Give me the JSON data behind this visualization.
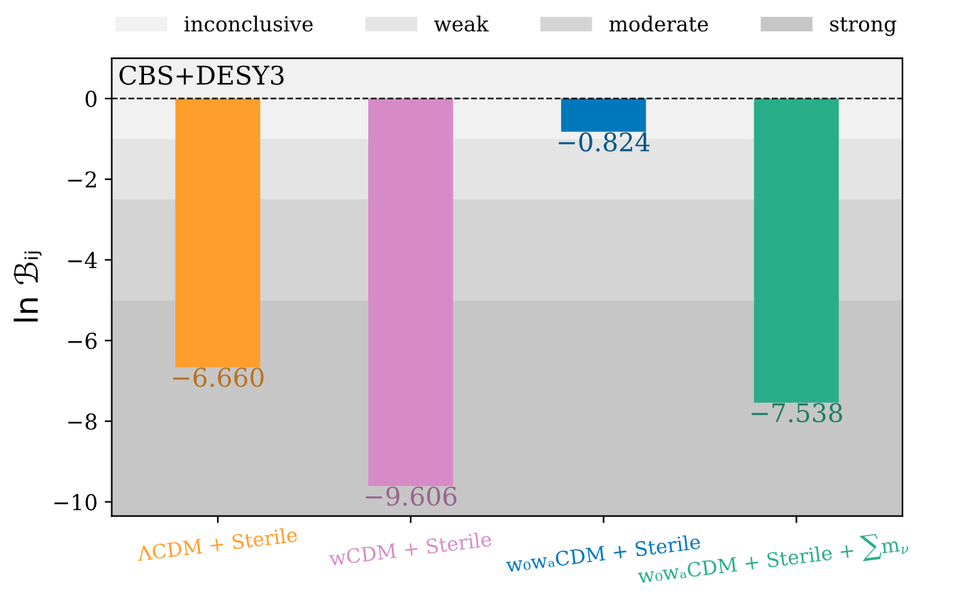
{
  "chart_data": {
    "type": "bar",
    "ylabel": "ln ℬᵢⱼ",
    "categories": [
      "ΛCDM + Sterile",
      "wCDM + Sterile",
      "w₀wₐCDM + Sterile",
      "w₀wₐCDM + Sterile + ∑m$_{ν}$"
    ],
    "values": [
      -6.66,
      -9.606,
      -0.824,
      -7.538
    ],
    "colors": [
      "#ff9e2a",
      "#d68bc6",
      "#0077bb",
      "#29ad88"
    ],
    "value_labels": [
      "−6.660",
      "−9.606",
      "−0.824",
      "−7.538"
    ],
    "ylim": [
      -10.35,
      1.0
    ],
    "yticks": [
      {
        "value": -10,
        "label": "−10"
      },
      {
        "value": -8,
        "label": "−8"
      },
      {
        "value": -6,
        "label": "−6"
      },
      {
        "value": -4,
        "label": "−4"
      },
      {
        "value": -2,
        "label": "−2"
      },
      0
    ],
    "bands": [
      {
        "axis": "y",
        "from": -1,
        "to": 1.0,
        "label": "inconclusive",
        "color": "#f1f1f1"
      },
      {
        "axis": "y",
        "from": -2.5,
        "to": -1,
        "label": "weak",
        "color": "#e4e4e4"
      },
      {
        "axis": "y",
        "from": -5,
        "to": -2.5,
        "label": "moderate",
        "color": "#d4d4d4"
      },
      {
        "axis": "y",
        "from": -10.35,
        "to": -5,
        "label": "strong",
        "color": "#c6c6c6"
      }
    ],
    "ref_lines": [
      {
        "axis": "y",
        "value": 0,
        "color": "#000000",
        "line_style": "dashed"
      }
    ],
    "annotations": [
      "CBS+DESY3"
    ],
    "legend": "top",
    "grid": false
  }
}
